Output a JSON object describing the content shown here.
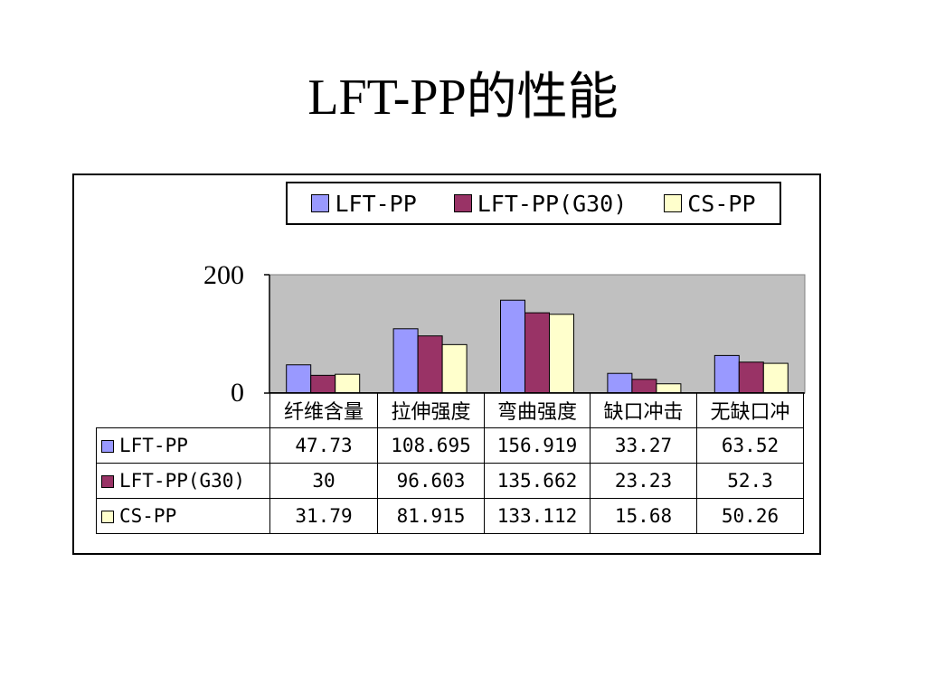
{
  "slide": {
    "title": "LFT-PP的性能"
  },
  "chart_data": {
    "type": "bar",
    "categories": [
      "纤维含量",
      "拉伸强度",
      "弯曲强度",
      "缺口冲击",
      "无缺口冲"
    ],
    "series": [
      {
        "name": "LFT-PP",
        "values": [
          47.73,
          108.695,
          156.919,
          33.27,
          63.52
        ],
        "labels": [
          "47.73",
          "108.695",
          "156.919",
          "33.27",
          "63.52"
        ],
        "color": "#9999ff"
      },
      {
        "name": "LFT-PP(G30)",
        "values": [
          30,
          96.603,
          135.662,
          23.23,
          52.3
        ],
        "labels": [
          "30",
          "96.603",
          "135.662",
          "23.23",
          "52.3"
        ],
        "color": "#993366"
      },
      {
        "name": "CS-PP",
        "values": [
          31.79,
          81.915,
          133.112,
          15.68,
          50.26
        ],
        "labels": [
          "31.79",
          "81.915",
          "133.112",
          "15.68",
          "50.26"
        ],
        "color": "#ffffcc"
      }
    ],
    "ylim": [
      0,
      200
    ],
    "yticks": [
      "200",
      "0"
    ],
    "legend_position": "top",
    "plot_background": "#c0c0c0",
    "data_table": true,
    "grid": false
  }
}
